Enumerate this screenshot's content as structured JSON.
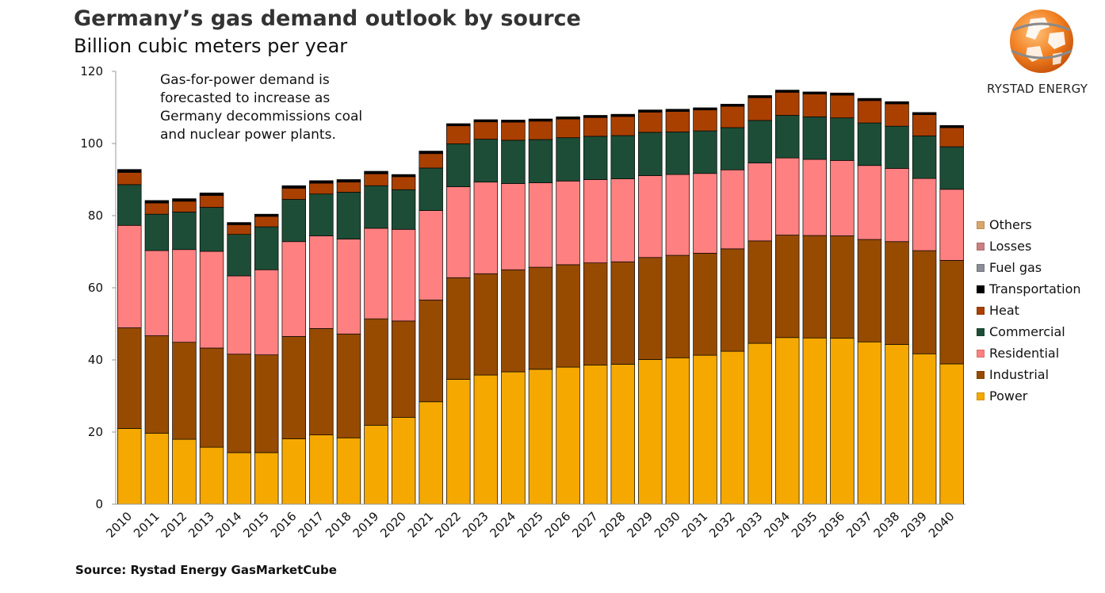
{
  "title": "Germany’s gas demand outlook by source",
  "subtitle": "Billion cubic meters per year",
  "source": "Source: Rystad Energy GasMarketCube",
  "brand": {
    "name": "RYSTAD ENERGY",
    "logo_icon": "globe-logo-icon"
  },
  "annotation": [
    "Gas-for-power demand is",
    "forecasted to increase as",
    "Germany decommissions coal",
    "and nuclear power plants."
  ],
  "chart_data": {
    "type": "bar",
    "stacked": true,
    "ylim": [
      0,
      120
    ],
    "yticks": [
      0,
      20,
      40,
      60,
      80,
      100,
      120
    ],
    "grid": false,
    "legend_position": "right",
    "categories": [
      "2010",
      "2011",
      "2012",
      "2013",
      "2014",
      "2015",
      "2016",
      "2017",
      "2018",
      "2019",
      "2020",
      "2021",
      "2022",
      "2023",
      "2024",
      "2025",
      "2026",
      "2027",
      "2028",
      "2029",
      "2030",
      "2031",
      "2032",
      "2033",
      "2034",
      "2035",
      "2036",
      "2037",
      "2038",
      "2039",
      "2040"
    ],
    "series": [
      {
        "name": "Power",
        "color": "#F5A800",
        "values": [
          21.0,
          19.7,
          18.0,
          15.8,
          14.3,
          14.3,
          18.1,
          19.2,
          18.4,
          21.9,
          24.1,
          28.4,
          34.6,
          35.8,
          36.7,
          37.4,
          38.0,
          38.6,
          38.8,
          40.1,
          40.6,
          41.3,
          42.4,
          44.6,
          46.2,
          46.1,
          46.0,
          45.0,
          44.3,
          41.7,
          38.9
        ]
      },
      {
        "name": "Industrial",
        "color": "#964B00",
        "values": [
          27.9,
          27.0,
          26.9,
          27.5,
          27.3,
          27.1,
          28.4,
          29.5,
          28.8,
          29.5,
          26.7,
          28.2,
          28.2,
          28.1,
          28.3,
          28.3,
          28.4,
          28.3,
          28.4,
          28.3,
          28.4,
          28.3,
          28.4,
          28.4,
          28.4,
          28.4,
          28.4,
          28.4,
          28.5,
          28.6,
          28.7
        ]
      },
      {
        "name": "Residential",
        "color": "#FF8080",
        "values": [
          28.4,
          23.6,
          25.7,
          26.8,
          21.7,
          23.6,
          26.3,
          25.7,
          26.3,
          25.1,
          25.4,
          24.8,
          25.2,
          25.4,
          23.9,
          23.4,
          23.2,
          23.1,
          23.0,
          22.7,
          22.4,
          22.1,
          21.9,
          21.6,
          21.4,
          21.1,
          20.9,
          20.5,
          20.3,
          20.0,
          19.7
        ]
      },
      {
        "name": "Commercial",
        "color": "#1D4D37",
        "values": [
          11.3,
          10.1,
          10.4,
          12.2,
          11.5,
          11.9,
          11.7,
          11.6,
          13.0,
          11.8,
          11.0,
          11.8,
          11.9,
          11.9,
          12.0,
          12.0,
          12.0,
          12.0,
          12.0,
          12.0,
          11.8,
          11.8,
          11.7,
          11.8,
          11.8,
          11.8,
          11.8,
          11.8,
          11.7,
          11.8,
          11.8
        ]
      },
      {
        "name": "Heat",
        "color": "#A94000",
        "values": [
          3.4,
          3.1,
          3.0,
          3.3,
          2.7,
          2.9,
          3.1,
          3.0,
          2.8,
          3.3,
          3.6,
          4.0,
          5.0,
          4.8,
          5.0,
          5.1,
          5.2,
          5.2,
          5.3,
          5.6,
          5.7,
          5.8,
          5.9,
          6.3,
          6.4,
          6.3,
          6.3,
          6.2,
          6.2,
          5.9,
          5.3
        ]
      },
      {
        "name": "Transportation",
        "color": "#000000",
        "values": [
          0.8,
          0.7,
          0.7,
          0.7,
          0.6,
          0.6,
          0.7,
          0.7,
          0.7,
          0.7,
          0.6,
          0.7,
          0.6,
          0.6,
          0.6,
          0.6,
          0.6,
          0.6,
          0.6,
          0.6,
          0.6,
          0.6,
          0.6,
          0.6,
          0.6,
          0.6,
          0.6,
          0.6,
          0.6,
          0.6,
          0.6
        ]
      },
      {
        "name": "Fuel gas",
        "color": "#8C8C96",
        "values": [
          0,
          0,
          0,
          0,
          0,
          0,
          0,
          0,
          0,
          0,
          0,
          0,
          0,
          0,
          0,
          0,
          0,
          0,
          0,
          0,
          0,
          0,
          0,
          0,
          0,
          0,
          0,
          0,
          0,
          0,
          0
        ]
      },
      {
        "name": "Losses",
        "color": "#C98080",
        "values": [
          0,
          0,
          0,
          0,
          0,
          0,
          0,
          0,
          0,
          0,
          0,
          0,
          0,
          0,
          0,
          0,
          0,
          0,
          0,
          0,
          0,
          0,
          0,
          0,
          0,
          0,
          0,
          0,
          0,
          0,
          0
        ]
      },
      {
        "name": "Others",
        "color": "#D9A66A",
        "values": [
          0,
          0,
          0,
          0,
          0,
          0,
          0,
          0,
          0,
          0,
          0,
          0,
          0,
          0,
          0,
          0,
          0,
          0,
          0,
          0,
          0,
          0,
          0,
          0,
          0,
          0,
          0,
          0,
          0,
          0,
          0
        ]
      }
    ]
  }
}
